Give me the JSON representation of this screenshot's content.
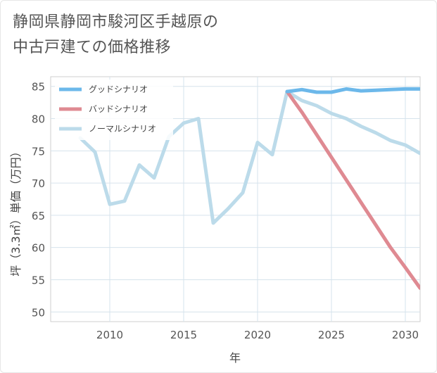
{
  "chart_data": {
    "type": "line",
    "title_lines": [
      "静岡県静岡市駿河区手越原の",
      "中古戸建ての価格推移"
    ],
    "xlabel": "年",
    "ylabel": "坪（3.3㎡）単価（万円）",
    "xlim": [
      2006,
      2031
    ],
    "ylim": [
      48.5,
      86.5
    ],
    "xticks": [
      2010,
      2015,
      2020,
      2025,
      2030
    ],
    "yticks": [
      50,
      55,
      60,
      65,
      70,
      75,
      80,
      85
    ],
    "grid": true,
    "legend_position": "top-left",
    "series": [
      {
        "name": "グッドシナリオ",
        "color": "#6cb8ea",
        "x": [
          2022,
          2023,
          2024,
          2025,
          2026,
          2027,
          2028,
          2029,
          2030,
          2031
        ],
        "y": [
          84.2,
          84.5,
          84.1,
          84.1,
          84.6,
          84.3,
          84.4,
          84.5,
          84.6,
          84.6
        ]
      },
      {
        "name": "バッドシナリオ",
        "color": "#df8a92",
        "x": [
          2022,
          2023,
          2024,
          2025,
          2026,
          2027,
          2028,
          2029,
          2030,
          2031
        ],
        "y": [
          84.2,
          81.0,
          77.5,
          74.0,
          70.5,
          67.0,
          63.5,
          60.0,
          56.9,
          53.7
        ]
      },
      {
        "name": "ノーマルシナリオ",
        "color": "#bcdbea",
        "x": [
          2008,
          2009,
          2010,
          2011,
          2012,
          2013,
          2014,
          2015,
          2016,
          2017,
          2018,
          2019,
          2020,
          2021,
          2022,
          2023,
          2024,
          2025,
          2026,
          2027,
          2028,
          2029,
          2030,
          2031
        ],
        "y": [
          77.0,
          74.8,
          66.7,
          67.2,
          72.8,
          70.8,
          77.2,
          79.3,
          80.0,
          63.8,
          66.0,
          68.5,
          76.3,
          74.4,
          84.2,
          82.8,
          82.0,
          80.8,
          80.0,
          78.8,
          77.8,
          76.6,
          75.9,
          74.6
        ]
      }
    ]
  }
}
